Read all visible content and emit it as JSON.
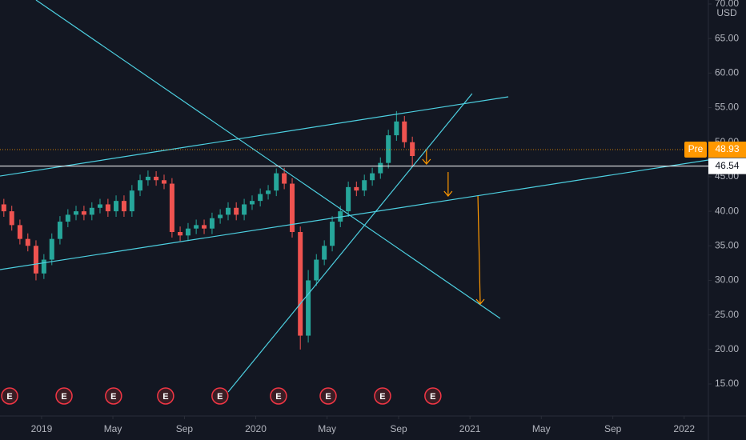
{
  "chart_data": {
    "type": "candlestick",
    "currency": "USD",
    "up_color": "#26a69a",
    "down_color": "#ef5350",
    "x": [
      2018.824,
      2018.861,
      2018.899,
      2018.936,
      2018.974,
      2019.011,
      2019.048,
      2019.086,
      2019.123,
      2019.161,
      2019.198,
      2019.235,
      2019.273,
      2019.31,
      2019.348,
      2019.385,
      2019.422,
      2019.46,
      2019.497,
      2019.535,
      2019.572,
      2019.609,
      2019.647,
      2019.684,
      2019.722,
      2019.759,
      2019.796,
      2019.834,
      2019.871,
      2019.909,
      2019.946,
      2019.983,
      2020.021,
      2020.058,
      2020.096,
      2020.133,
      2020.17,
      2020.208,
      2020.245,
      2020.283,
      2020.32,
      2020.357,
      2020.395,
      2020.432,
      2020.47,
      2020.507,
      2020.544,
      2020.582,
      2020.619,
      2020.657,
      2020.694,
      2020.731
    ],
    "open": [
      41,
      40,
      38,
      36,
      35,
      31,
      33,
      36,
      38.5,
      39.5,
      40,
      39.5,
      40.5,
      41,
      40,
      41.5,
      40,
      43,
      44.5,
      45,
      44.5,
      44,
      37,
      36.5,
      37.5,
      38,
      37.5,
      39,
      39.5,
      40.5,
      39.5,
      41,
      41.5,
      42.5,
      43,
      45.5,
      44,
      37,
      22,
      30,
      33,
      35,
      38.5,
      40,
      43.5,
      43,
      44.5,
      45.5,
      47,
      51,
      53,
      50
    ],
    "high": [
      41.8,
      40.8,
      38.8,
      36.8,
      35.8,
      33.8,
      36.8,
      39.3,
      40.3,
      40.8,
      40.8,
      41.3,
      41.8,
      41.8,
      42.3,
      42.3,
      43.8,
      45.3,
      45.9,
      45.8,
      45.3,
      44.8,
      37.8,
      38.3,
      38.8,
      38.8,
      39.8,
      40.3,
      41.3,
      41.3,
      41.8,
      42.3,
      43.3,
      43.8,
      46.2,
      46.3,
      44.8,
      37.8,
      31.5,
      33.8,
      35.8,
      39.3,
      40.8,
      44.3,
      44.3,
      45.3,
      46.3,
      47.8,
      51.8,
      54.5,
      53.8,
      50.8
    ],
    "low": [
      39.2,
      37.2,
      35.2,
      34.2,
      30,
      30.2,
      32.2,
      35.2,
      37.7,
      38.7,
      38.7,
      38.7,
      39.7,
      39.2,
      39.2,
      39.2,
      39.2,
      42.2,
      43.7,
      43.7,
      43.2,
      36.2,
      35.7,
      35.7,
      36.7,
      36.7,
      36.7,
      38.2,
      38.7,
      38.7,
      38.7,
      40.2,
      40.7,
      41.7,
      42.2,
      43.2,
      36.2,
      20,
      21,
      29.2,
      32.2,
      34.2,
      37.7,
      39.2,
      42.2,
      42.2,
      43.7,
      44.7,
      46.2,
      50.2,
      49.2,
      46.5
    ],
    "close": [
      40,
      38,
      36,
      35,
      31,
      33,
      36,
      38.5,
      39.5,
      40,
      39.5,
      40.5,
      41,
      40,
      41.5,
      40,
      43,
      44.5,
      45,
      44.5,
      44,
      37,
      36.5,
      37.5,
      38,
      37.5,
      39,
      39.5,
      40.5,
      39.5,
      41,
      41.5,
      42.5,
      43,
      45.5,
      44,
      37,
      22,
      30,
      33,
      35,
      38.5,
      40,
      43.5,
      43,
      44.5,
      45.5,
      47,
      51,
      53,
      50,
      48
    ],
    "xlim": [
      2018.806,
      2022.113
    ],
    "ylim": [
      10.37,
      70.58
    ],
    "xticks": [
      {
        "value": 2019,
        "label": "2019"
      },
      {
        "value": 2019.333,
        "label": "May"
      },
      {
        "value": 2019.667,
        "label": "Sep"
      },
      {
        "value": 2020,
        "label": "2020"
      },
      {
        "value": 2020.333,
        "label": "May"
      },
      {
        "value": 2020.667,
        "label": "Sep"
      },
      {
        "value": 2021,
        "label": "2021"
      },
      {
        "value": 2021.333,
        "label": "May"
      },
      {
        "value": 2021.667,
        "label": "Sep"
      },
      {
        "value": 2022,
        "label": "2022"
      }
    ],
    "yticks": [
      {
        "value": 15,
        "label": "15.00"
      },
      {
        "value": 20,
        "label": "20.00"
      },
      {
        "value": 25,
        "label": "25.00"
      },
      {
        "value": 30,
        "label": "30.00"
      },
      {
        "value": 35,
        "label": "35.00"
      },
      {
        "value": 40,
        "label": "40.00"
      },
      {
        "value": 45,
        "label": "45.00"
      },
      {
        "value": 50,
        "label": "50.00"
      },
      {
        "value": 55,
        "label": "55.00"
      },
      {
        "value": 60,
        "label": "60.00"
      },
      {
        "value": 65,
        "label": "65.00"
      },
      {
        "value": 70,
        "label": "70.00"
      }
    ],
    "earnings": {
      "label": "E",
      "x": [
        2018.851,
        2019.105,
        2019.336,
        2019.579,
        2019.833,
        2020.106,
        2020.338,
        2020.592,
        2020.827
      ]
    },
    "trend_lines": {
      "color": "#4dd0e1",
      "lines": [
        {
          "x": [
            2018.974,
            2021.141
          ],
          "y": [
            70.58,
            24.5
          ]
        },
        {
          "x": [
            2018.806,
            2021.179
          ],
          "y": [
            45.1,
            56.57
          ]
        },
        {
          "x": [
            2018.806,
            2022.113
          ],
          "y": [
            31.56,
            47.42
          ]
        },
        {
          "x": [
            2019.871,
            2021.01
          ],
          "y": [
            13.84,
            57.03
          ]
        }
      ]
    },
    "arrows": {
      "color": "#ff9800",
      "lines": [
        {
          "x": [
            2020.797,
            2020.797
          ],
          "y": [
            48.81,
            46.84
          ]
        },
        {
          "x": [
            2020.898,
            2020.898
          ],
          "y": [
            45.68,
            42.21
          ]
        },
        {
          "x": [
            2021.037,
            2021.048
          ],
          "y": [
            42.21,
            26.58
          ]
        }
      ]
    },
    "price_lines": [
      {
        "label": "Pre",
        "value": 48.93,
        "color": "#ff9800"
      },
      {
        "value": 46.54,
        "color": "#ffffff"
      }
    ]
  }
}
